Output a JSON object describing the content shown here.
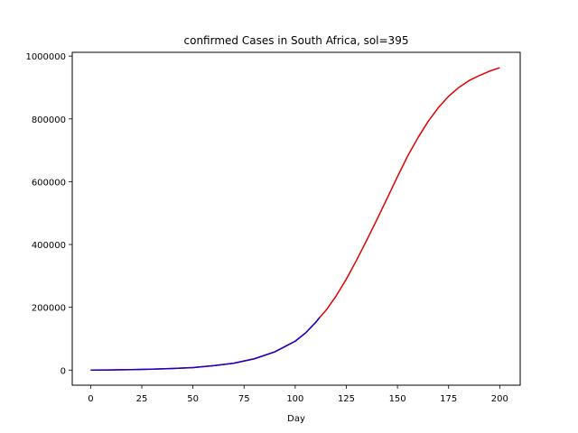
{
  "chart_data": {
    "type": "line",
    "title": "confirmed Cases in South Africa, sol=395",
    "xlabel": "Day",
    "ylabel": "",
    "xlim": [
      -9,
      210
    ],
    "ylim": [
      -48000,
      1012000
    ],
    "xticks": [
      0,
      25,
      50,
      75,
      100,
      125,
      150,
      175,
      200
    ],
    "yticks": [
      0,
      200000,
      400000,
      600000,
      800000,
      1000000
    ],
    "grid": false,
    "legend": "none",
    "series": [
      {
        "color": "#e00000",
        "x": [
          0,
          10,
          20,
          30,
          40,
          50,
          60,
          70,
          80,
          90,
          100,
          105,
          110,
          112,
          115,
          120,
          125,
          130,
          135,
          140,
          145,
          150,
          155,
          160,
          165,
          170,
          175,
          180,
          185,
          190,
          195,
          200
        ],
        "y": [
          0,
          500,
          1500,
          3000,
          5000,
          8000,
          14000,
          22000,
          36000,
          58000,
          92000,
          118000,
          152000,
          168000,
          190000,
          236000,
          290000,
          350000,
          414000,
          480000,
          548000,
          616000,
          682000,
          740000,
          792000,
          836000,
          872000,
          900000,
          922000,
          938000,
          952000,
          963000
        ]
      },
      {
        "color": "#1a00c8",
        "x": [
          0,
          10,
          20,
          30,
          40,
          50,
          60,
          70,
          80,
          90,
          100,
          105,
          110,
          112
        ],
        "y": [
          0,
          500,
          1500,
          3000,
          5000,
          8000,
          14000,
          22000,
          36000,
          58000,
          92000,
          118000,
          152000,
          168000
        ]
      }
    ]
  }
}
